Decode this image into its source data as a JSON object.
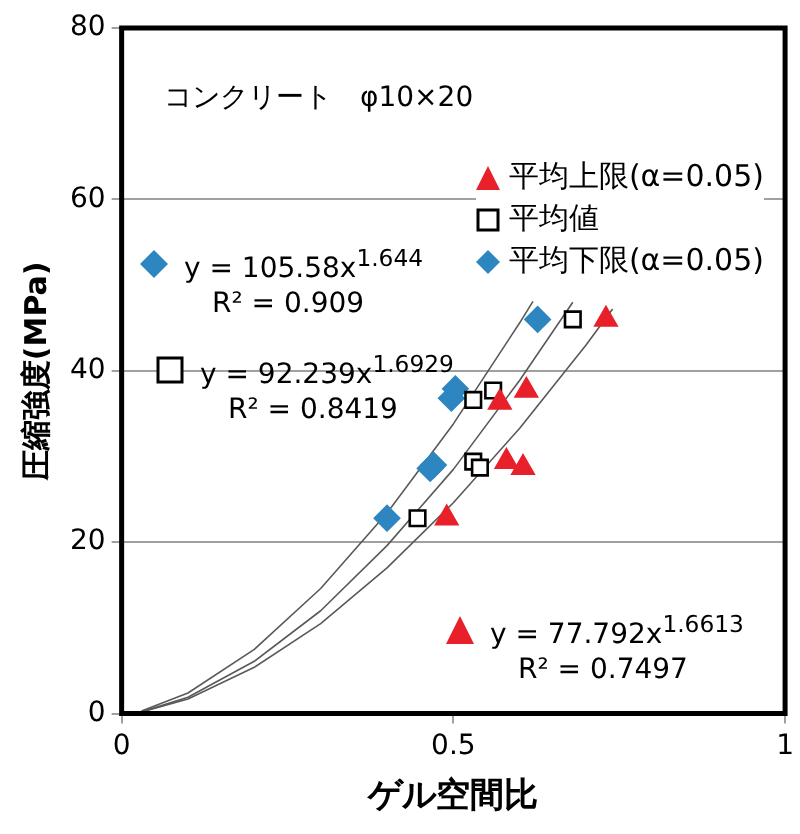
{
  "chart_data": {
    "type": "scatter",
    "xlabel": "ゲル空間比",
    "ylabel": "圧縮強度(MPa)",
    "xlim": [
      0,
      1
    ],
    "xticks": [
      0,
      0.5,
      1
    ],
    "ylim": [
      0,
      80
    ],
    "yticks": [
      0,
      20,
      40,
      60,
      80
    ],
    "grid": "y",
    "legend": "top right",
    "annotations": [
      "コンクリート　φ10×20",
      "y = 105.58x$^{1.644}$",
      "R² = 0.909",
      "y = 92.239x$^{1.6929}$",
      "R² = 0.8419",
      "y = 77.792x$^{1.6613}$",
      "R² = 0.7497"
    ],
    "series": [
      {
        "name": "平均上限(α=0.05)",
        "type": "scatter",
        "marker": "triangle",
        "color": "#e8202a",
        "x": [
          0.49,
          0.58,
          0.605,
          0.57,
          0.61,
          0.73
        ],
        "values": [
          22.8,
          29.4,
          28.7,
          36.3,
          37.7,
          46.0
        ]
      },
      {
        "name": "平均値",
        "type": "scatter",
        "marker": "square",
        "color": "#000000",
        "x": [
          0.446,
          0.53,
          0.54,
          0.53,
          0.56,
          0.68
        ],
        "values": [
          22.8,
          29.4,
          28.7,
          36.6,
          37.7,
          46.0
        ]
      },
      {
        "name": "平均下限(α=0.05)",
        "type": "scatter",
        "marker": "diamond",
        "color": "#2e86c1",
        "x": [
          0.4,
          0.47,
          0.465,
          0.497,
          0.503,
          0.627
        ],
        "values": [
          22.8,
          29.0,
          28.6,
          36.8,
          37.9,
          46.0
        ]
      },
      {
        "type": "line",
        "marker": "none",
        "color": "#595959",
        "x": [
          0.03,
          0.1,
          0.2,
          0.3,
          0.4,
          0.5,
          0.6,
          0.62
        ],
        "values": [
          0.3,
          2.4,
          7.5,
          14.6,
          23.4,
          33.8,
          45.6,
          48.1
        ]
      },
      {
        "type": "line",
        "marker": "none",
        "color": "#595959",
        "x": [
          0.03,
          0.1,
          0.2,
          0.3,
          0.4,
          0.5,
          0.6,
          0.68
        ],
        "values": [
          0.2,
          1.9,
          6.1,
          12.0,
          19.6,
          28.5,
          38.9,
          48.0
        ]
      },
      {
        "type": "line",
        "marker": "none",
        "color": "#595959",
        "x": [
          0.03,
          0.1,
          0.2,
          0.3,
          0.4,
          0.5,
          0.6,
          0.7,
          0.74
        ],
        "values": [
          0.2,
          1.7,
          5.4,
          10.5,
          17.0,
          24.6,
          33.3,
          43.0,
          47.2
        ]
      }
    ]
  }
}
